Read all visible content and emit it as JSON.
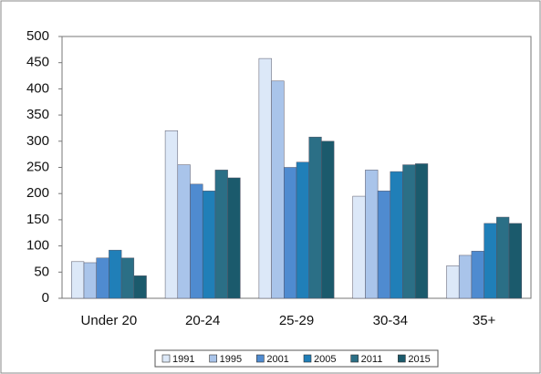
{
  "chart_data": {
    "type": "bar",
    "categories": [
      "Under 20",
      "20-24",
      "25-29",
      "30-34",
      "35+"
    ],
    "series": [
      {
        "name": "1991",
        "color": "#dce8f8",
        "values": [
          70,
          320,
          458,
          195,
          62
        ]
      },
      {
        "name": "1995",
        "color": "#a9c4ea",
        "values": [
          68,
          255,
          415,
          245,
          82
        ]
      },
      {
        "name": "2001",
        "color": "#4f8bd0",
        "values": [
          77,
          218,
          250,
          205,
          90
        ]
      },
      {
        "name": "2005",
        "color": "#207fb8",
        "values": [
          92,
          205,
          260,
          242,
          143
        ]
      },
      {
        "name": "2011",
        "color": "#2b6f86",
        "values": [
          77,
          245,
          308,
          255,
          155
        ]
      },
      {
        "name": "2015",
        "color": "#1b5a6c",
        "values": [
          43,
          230,
          300,
          257,
          143
        ]
      }
    ],
    "ylim": [
      0,
      500
    ],
    "yticks": [
      0,
      50,
      100,
      150,
      200,
      250,
      300,
      350,
      400,
      450,
      500
    ],
    "grid": false,
    "legend": "bottom"
  }
}
